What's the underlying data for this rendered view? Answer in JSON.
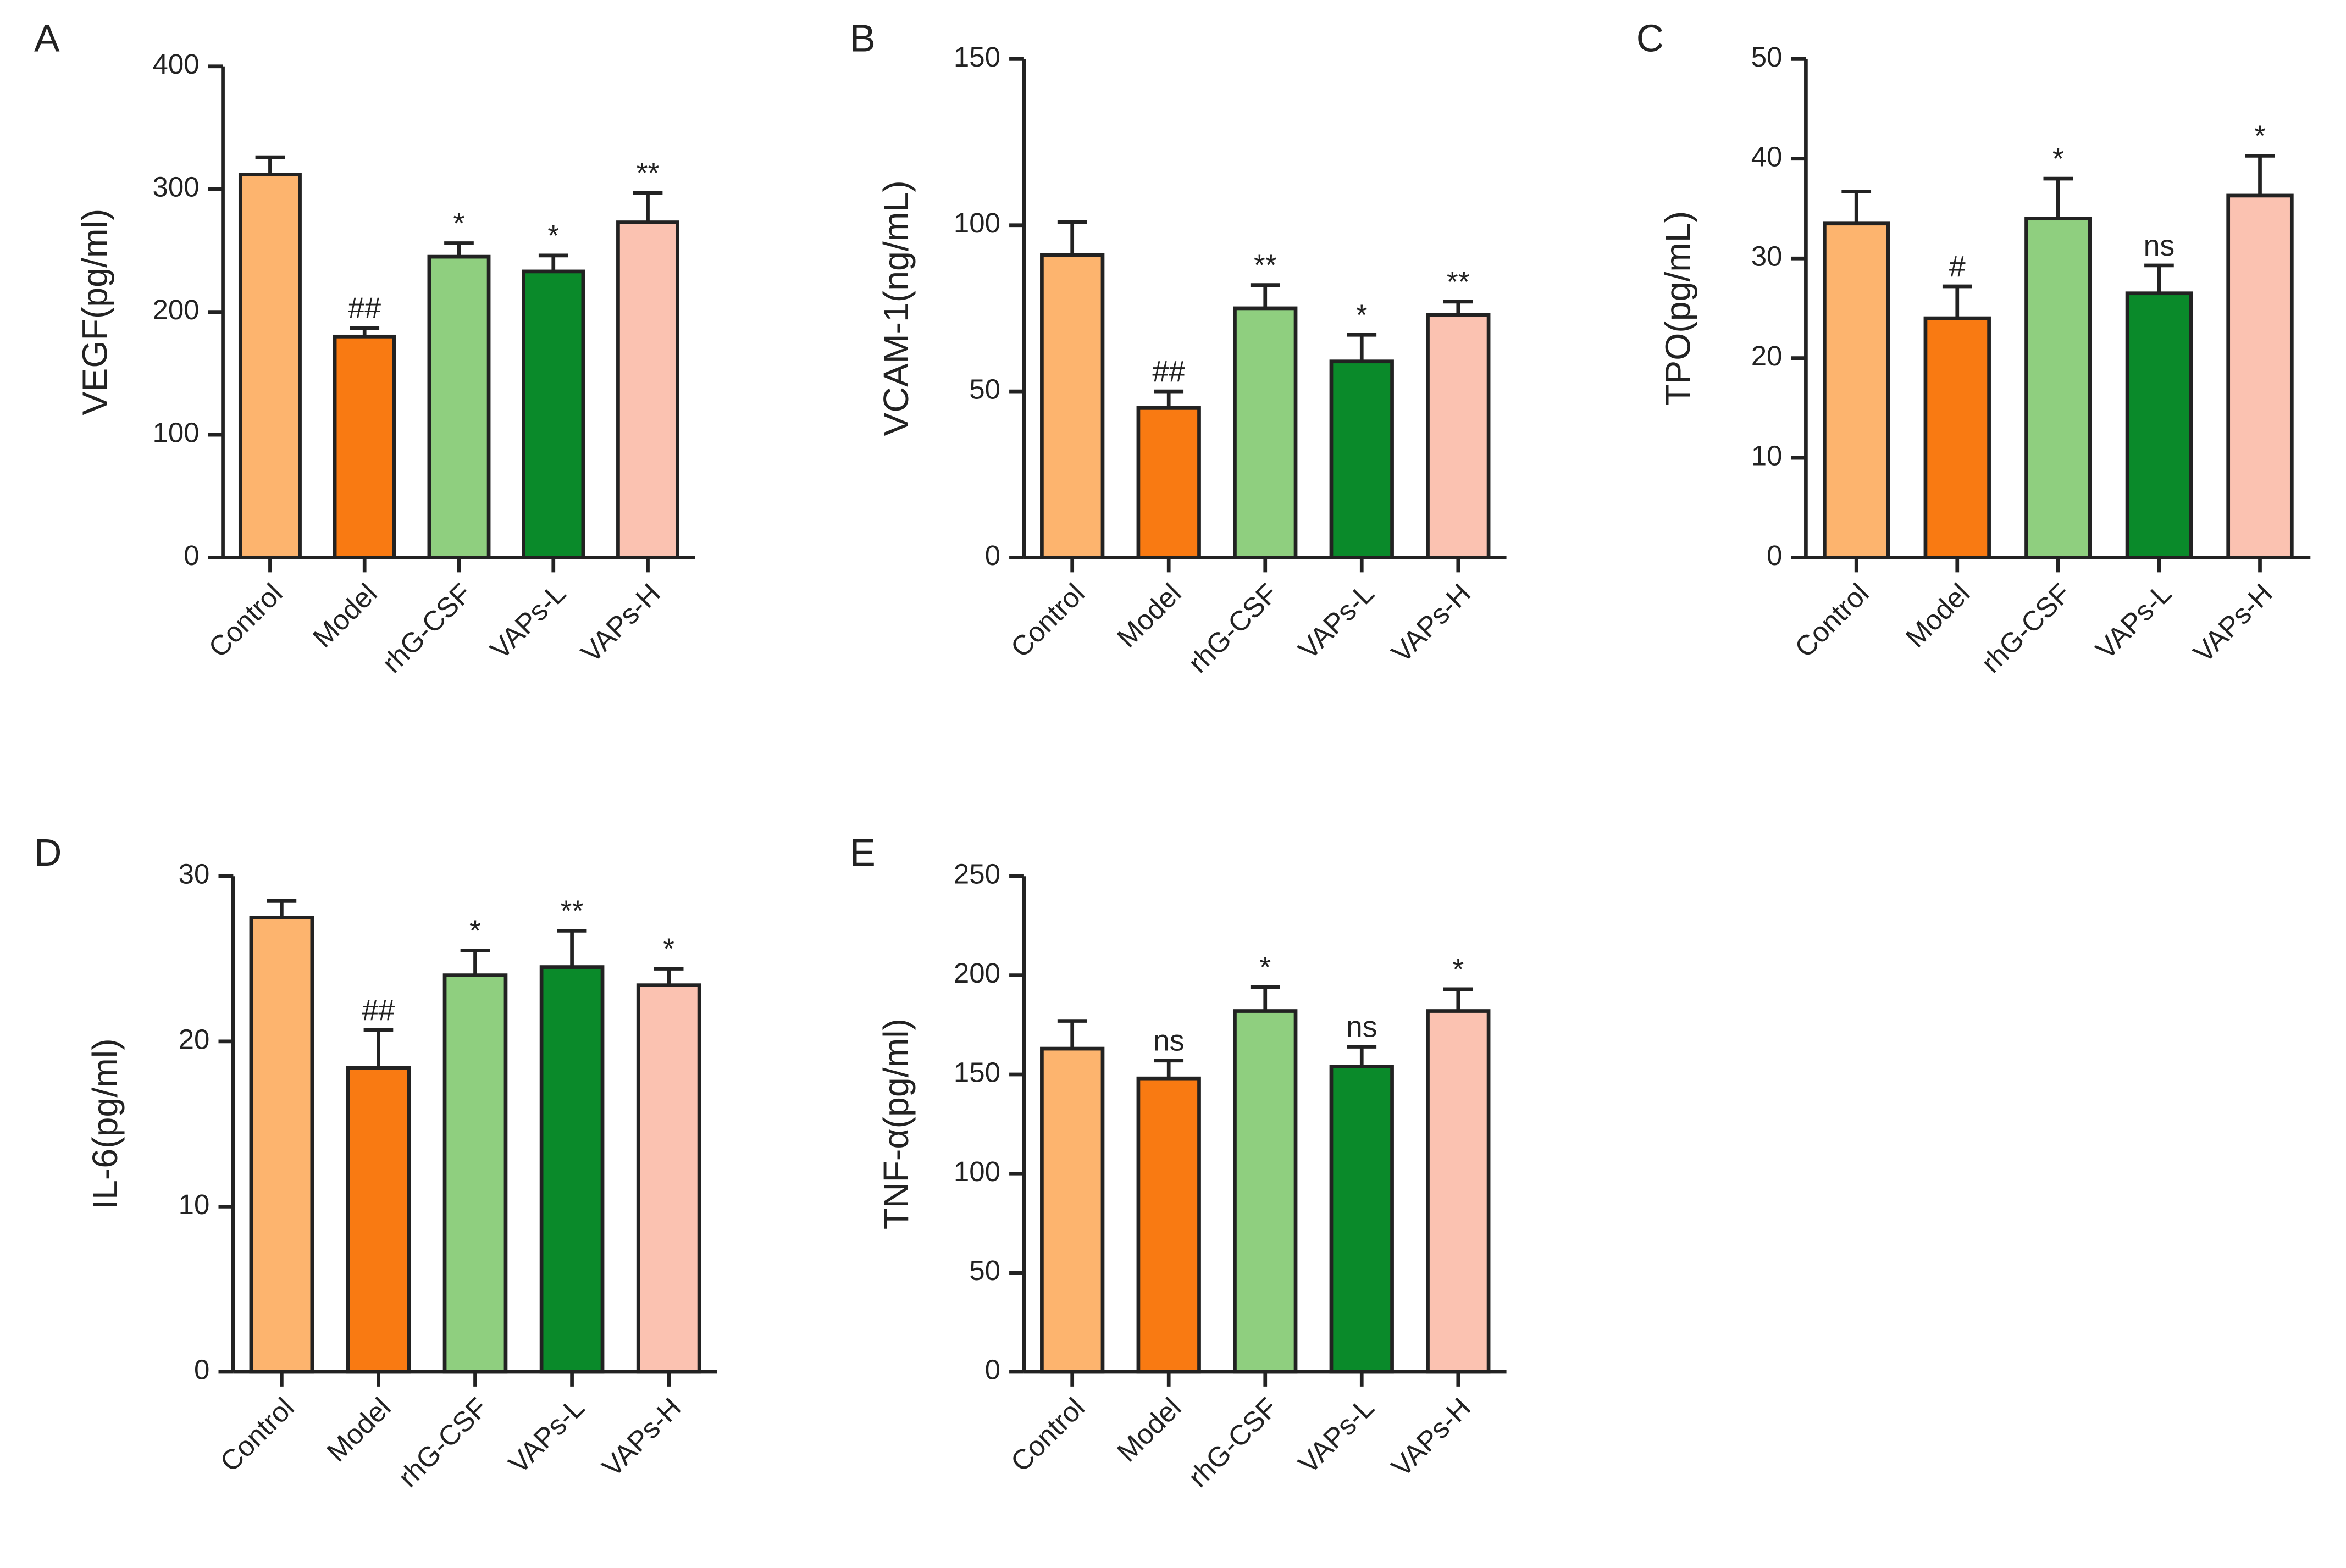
{
  "chart_data": [
    {
      "type": "bar",
      "label": "A",
      "ylabel": "VEGF(pg/ml)",
      "categories": [
        "Control",
        "Model",
        "rhG-CSF",
        "VAPs-L",
        "VAPs-H"
      ],
      "values": [
        312,
        180,
        245,
        233,
        273
      ],
      "errors": [
        14,
        7,
        11,
        13,
        24
      ],
      "annotations": [
        null,
        "##",
        "*",
        "*",
        "**"
      ],
      "colors": [
        "#fdb46e",
        "#f97a12",
        "#8fcf7f",
        "#0a8a2a",
        "#fbc2b1"
      ],
      "ylim": [
        0,
        400
      ],
      "yticks": [
        0,
        100,
        200,
        300,
        400
      ]
    },
    {
      "type": "bar",
      "label": "B",
      "ylabel": "VCAM-1(ng/mL)",
      "categories": [
        "Control",
        "Model",
        "rhG-CSF",
        "VAPs-L",
        "VAPs-H"
      ],
      "values": [
        91,
        45,
        75,
        59,
        73
      ],
      "errors": [
        10,
        5,
        7,
        8,
        4
      ],
      "annotations": [
        null,
        "##",
        "**",
        "*",
        "**"
      ],
      "colors": [
        "#fdb46e",
        "#f97a12",
        "#8fcf7f",
        "#0a8a2a",
        "#fbc2b1"
      ],
      "ylim": [
        0,
        150
      ],
      "yticks": [
        0,
        50,
        100,
        150
      ]
    },
    {
      "type": "bar",
      "label": "C",
      "ylabel": "TPO(pg/mL)",
      "categories": [
        "Control",
        "Model",
        "rhG-CSF",
        "VAPs-L",
        "VAPs-H"
      ],
      "values": [
        33.5,
        24,
        34,
        26.5,
        36.3
      ],
      "errors": [
        3.2,
        3.2,
        4,
        2.8,
        4
      ],
      "annotations": [
        null,
        "#",
        "*",
        "ns",
        "*"
      ],
      "colors": [
        "#fdb46e",
        "#f97a12",
        "#8fcf7f",
        "#0a8a2a",
        "#fbc2b1"
      ],
      "ylim": [
        0,
        50
      ],
      "yticks": [
        0,
        10,
        20,
        30,
        40,
        50
      ]
    },
    {
      "type": "bar",
      "label": "D",
      "ylabel": "IL-6(pg/ml)",
      "categories": [
        "Control",
        "Model",
        "rhG-CSF",
        "VAPs-L",
        "VAPs-H"
      ],
      "values": [
        27.5,
        18.4,
        24,
        24.5,
        23.4
      ],
      "errors": [
        1,
        2.3,
        1.5,
        2.2,
        1
      ],
      "annotations": [
        null,
        "##",
        "*",
        "**",
        "*"
      ],
      "colors": [
        "#fdb46e",
        "#f97a12",
        "#8fcf7f",
        "#0a8a2a",
        "#fbc2b1"
      ],
      "ylim": [
        0,
        30
      ],
      "yticks": [
        0,
        10,
        20,
        30
      ]
    },
    {
      "type": "bar",
      "label": "E",
      "ylabel": "TNF-α(pg/ml)",
      "categories": [
        "Control",
        "Model",
        "rhG-CSF",
        "VAPs-L",
        "VAPs-H"
      ],
      "values": [
        163,
        148,
        182,
        154,
        182
      ],
      "errors": [
        14,
        9,
        12,
        10,
        11
      ],
      "annotations": [
        null,
        "ns",
        "*",
        "ns",
        "*"
      ],
      "colors": [
        "#fdb46e",
        "#f97a12",
        "#8fcf7f",
        "#0a8a2a",
        "#fbc2b1"
      ],
      "ylim": [
        0,
        250
      ],
      "yticks": [
        0,
        50,
        100,
        150,
        200,
        250
      ]
    }
  ]
}
